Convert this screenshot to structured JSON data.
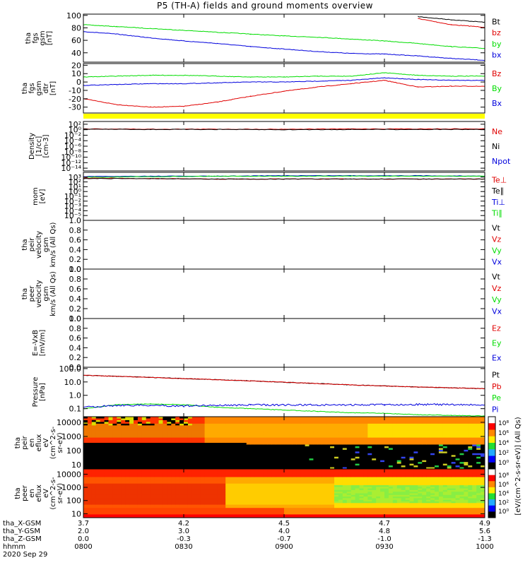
{
  "title": "P5 (TH-A) fields and ground moments overview",
  "colors": {
    "black": "#000000",
    "red": "#e00000",
    "green": "#00dd00",
    "blue": "#0000dd",
    "yellow": "#ffff00"
  },
  "chart_data": [
    {
      "type": "line",
      "id": "fgs_gsm",
      "ylabel": [
        "tha",
        "fgs",
        "gsm",
        "[nT]"
      ],
      "ylim": [
        25,
        102
      ],
      "ticks": [
        40,
        60,
        80,
        100
      ],
      "x": [
        0,
        10,
        20,
        30,
        40,
        50,
        60,
        70,
        80,
        90,
        100,
        110,
        120
      ],
      "series": [
        {
          "name": "Bt",
          "color": "#000000",
          "values": [
            null,
            null,
            null,
            null,
            null,
            null,
            null,
            null,
            null,
            null,
            98,
            93,
            89
          ]
        },
        {
          "name": "bz",
          "color": "#e00000",
          "values": [
            null,
            null,
            null,
            null,
            null,
            null,
            null,
            null,
            null,
            null,
            95,
            85,
            81
          ]
        },
        {
          "name": "by",
          "color": "#00dd00",
          "values": [
            85,
            82,
            79,
            76,
            73,
            70,
            67,
            65,
            62,
            59,
            55,
            50,
            47
          ]
        },
        {
          "name": "bx",
          "color": "#0000dd",
          "values": [
            74,
            70,
            64,
            59,
            55,
            50,
            46,
            42,
            39,
            38,
            35,
            31,
            28
          ]
        }
      ]
    },
    {
      "type": "line",
      "id": "fgs_gsm_detrend",
      "ylabel": [
        "tha",
        "fgs",
        "gsm",
        "dtr",
        "[nT]"
      ],
      "ylim": [
        -37,
        22
      ],
      "ticks": [
        -30,
        -20,
        -10,
        0,
        10,
        20
      ],
      "x": [
        0,
        10,
        20,
        30,
        40,
        50,
        60,
        70,
        80,
        90,
        100,
        110,
        120
      ],
      "series": [
        {
          "name": "Bz",
          "color": "#e00000",
          "values": [
            -20,
            -27,
            -30,
            -29,
            -24,
            -17,
            -11,
            -6,
            -2,
            2,
            -6,
            -5,
            -5
          ]
        },
        {
          "name": "By",
          "color": "#00dd00",
          "values": [
            6,
            7,
            8,
            8,
            7,
            6,
            6,
            7,
            7,
            11,
            8,
            7,
            7
          ]
        },
        {
          "name": "Bx",
          "color": "#0000dd",
          "values": [
            -4,
            -3,
            -2,
            -2,
            -1,
            0,
            0,
            1,
            2,
            5,
            3,
            2,
            2
          ]
        }
      ]
    },
    {
      "type": "line",
      "id": "density",
      "ylabel": [
        "Density",
        "[1/cc]",
        "[cm-3]"
      ],
      "scale": "log",
      "ylim": [
        -15,
        3
      ],
      "ticks": [
        -14,
        -12,
        -10,
        -8,
        -6,
        -4,
        -2,
        0,
        2
      ],
      "tick_labels": [
        "10⁻¹⁴",
        "10⁻¹²",
        "10⁻¹⁰",
        "10⁻⁸",
        "10⁻⁶",
        "10⁻⁴",
        "10⁻²",
        "10⁰",
        "10²"
      ],
      "x": [
        0,
        20,
        40,
        60,
        80,
        100,
        120
      ],
      "series": [
        {
          "name": "Ne",
          "color": "#e00000",
          "values": [
            0.3,
            0.2,
            0.2,
            0.2,
            0.3,
            0.3,
            0.3
          ]
        },
        {
          "name": "Ni",
          "color": "#000000",
          "values": [
            0.2,
            0.1,
            0.1,
            0.0,
            0.1,
            0.1,
            0.1
          ]
        },
        {
          "name": "Npot",
          "color": "#0000dd",
          "values": [
            null,
            null,
            null,
            null,
            null,
            null,
            null
          ]
        }
      ]
    },
    {
      "type": "line",
      "id": "temperature",
      "ylabel": [
        "mom",
        "[eV]"
      ],
      "scale": "log",
      "ylim": [
        -6,
        4
      ],
      "ticks": [
        -5,
        -4,
        -3,
        -2,
        -1,
        0,
        1,
        2,
        3
      ],
      "tick_labels": [
        "10⁻⁵",
        "10⁻⁴",
        "10⁻³",
        "10⁻²",
        "10⁻¹",
        "10⁰",
        "10¹",
        "10²",
        "10³"
      ],
      "x": [
        0,
        20,
        40,
        60,
        80,
        100,
        120
      ],
      "series": [
        {
          "name": "Te⊥",
          "color": "#e00000",
          "values": [
            2.8,
            2.7,
            2.6,
            2.6,
            2.6,
            2.6,
            2.6
          ]
        },
        {
          "name": "Te∥",
          "color": "#000000",
          "values": [
            2.7,
            2.7,
            2.6,
            2.6,
            2.6,
            2.6,
            2.6
          ]
        },
        {
          "name": "Ti⊥",
          "color": "#0000dd",
          "values": [
            3.1,
            3.2,
            3.2,
            3.3,
            3.3,
            3.3,
            3.2
          ]
        },
        {
          "name": "Ti∥",
          "color": "#00dd00",
          "values": [
            3.0,
            3.1,
            3.2,
            3.2,
            3.2,
            3.2,
            3.2
          ]
        }
      ]
    },
    {
      "type": "line",
      "id": "peir_velocity",
      "ylabel": [
        "tha",
        "peir",
        "velocity",
        "gsm",
        "km/s (All Qs)"
      ],
      "ylim": [
        0,
        1
      ],
      "ticks": [
        0,
        0.2,
        0.4,
        0.6,
        0.8,
        1.0
      ],
      "tick_labels": [
        "0.0",
        "0.2",
        "0.4",
        "0.6",
        "0.8",
        "1.0"
      ],
      "series": [
        {
          "name": "Vt",
          "color": "#000000"
        },
        {
          "name": "Vz",
          "color": "#e00000"
        },
        {
          "name": "Vy",
          "color": "#00dd00"
        },
        {
          "name": "Vx",
          "color": "#0000dd"
        }
      ]
    },
    {
      "type": "line",
      "id": "peer_velocity",
      "ylabel": [
        "tha",
        "peer",
        "velocity",
        "gsm",
        "km/s (All Qs)"
      ],
      "ylim": [
        0,
        1
      ],
      "ticks": [
        0,
        0.2,
        0.4,
        0.6,
        0.8,
        1.0
      ],
      "tick_labels": [
        "0.0",
        "0.2",
        "0.4",
        "0.6",
        "0.8",
        "1.0"
      ],
      "series": [
        {
          "name": "Vt",
          "color": "#000000"
        },
        {
          "name": "Vz",
          "color": "#e00000"
        },
        {
          "name": "Vy",
          "color": "#00dd00"
        },
        {
          "name": "Vx",
          "color": "#0000dd"
        }
      ]
    },
    {
      "type": "line",
      "id": "efield",
      "ylabel": [
        "E=-VxB",
        "[mV/m]"
      ],
      "ylim": [
        0,
        1
      ],
      "ticks": [
        0,
        0.2,
        0.4,
        0.6,
        0.8,
        1.0
      ],
      "tick_labels": [
        "0.0",
        "0.2",
        "0.4",
        "0.6",
        "0.8",
        "1.0"
      ],
      "series": [
        {
          "name": "Ez",
          "color": "#e00000"
        },
        {
          "name": "Ey",
          "color": "#00dd00"
        },
        {
          "name": "Ex",
          "color": "#0000dd"
        }
      ]
    },
    {
      "type": "line",
      "id": "pressure",
      "ylabel": [
        "Pressure",
        "[nPa]"
      ],
      "scale": "log",
      "ylim": [
        -1.6,
        2.1
      ],
      "ticks": [
        -1,
        0,
        1,
        2
      ],
      "tick_labels": [
        "0.1",
        "1.0",
        "10.0",
        "100.0"
      ],
      "x": [
        0,
        10,
        20,
        30,
        40,
        50,
        60,
        70,
        80,
        90,
        100,
        110,
        120
      ],
      "series": [
        {
          "name": "Pt",
          "color": "#000000",
          "values": [
            1.5,
            1.42,
            1.34,
            1.25,
            1.17,
            1.08,
            0.98,
            0.88,
            0.78,
            0.7,
            0.62,
            0.56,
            0.5
          ]
        },
        {
          "name": "Pb",
          "color": "#e00000",
          "values": [
            1.5,
            1.42,
            1.34,
            1.25,
            1.17,
            1.08,
            0.98,
            0.88,
            0.78,
            0.7,
            0.62,
            0.56,
            0.5
          ]
        },
        {
          "name": "Pe",
          "color": "#00dd00",
          "values": [
            -1.0,
            -0.7,
            -0.65,
            -0.7,
            -0.9,
            -1.0,
            -1.1,
            -1.2,
            -1.3,
            -1.35,
            -1.45,
            -1.5,
            -1.55
          ]
        },
        {
          "name": "Pi",
          "color": "#0000dd",
          "values": [
            -0.9,
            -0.75,
            -0.75,
            -0.8,
            -0.75,
            -0.72,
            -0.72,
            -0.72,
            -0.72,
            -0.7,
            -0.68,
            -0.7,
            -0.72
          ]
        }
      ]
    },
    {
      "type": "heatmap",
      "id": "peir_en",
      "ylabel": [
        "tha",
        "peir",
        "en",
        "eflux",
        "eV",
        "(cm^2-s-",
        "sr-eV)"
      ],
      "ylim": [
        5,
        25000
      ],
      "ticks": [
        10,
        100,
        1000,
        10000
      ],
      "tick_labels": [
        "10",
        "100",
        "1000",
        "10000"
      ]
    },
    {
      "type": "heatmap",
      "id": "peer_en",
      "ylabel": [
        "tha",
        "peer",
        "en",
        "eflux",
        "eV",
        "(cm^2-s-",
        "sr-eV)"
      ],
      "ylim": [
        5,
        25000
      ],
      "ticks": [
        10,
        100,
        1000,
        10000
      ],
      "tick_labels": [
        "10",
        "100",
        "1000",
        "10000"
      ]
    }
  ],
  "colorbar": {
    "label": "[eV/(cm^2-s-sr-eV)] (All Qs)",
    "top_ticks": [
      "10⁸",
      "10⁶",
      "10⁴",
      "10²",
      "10⁰"
    ],
    "bottom_ticks": [
      "10⁸",
      "10⁶",
      "10⁴",
      "10²",
      "10⁰"
    ]
  },
  "xaxis": {
    "rows": [
      {
        "label": "tha_X-GSM",
        "values": [
          "3.7",
          "4.2",
          "4.5",
          "4.7",
          "4.9"
        ]
      },
      {
        "label": "tha_Y-GSM",
        "values": [
          "2.0",
          "3.0",
          "4.0",
          "4.8",
          "5.6"
        ]
      },
      {
        "label": "tha_Z-GSM",
        "values": [
          "0.0",
          "-0.3",
          "-0.7",
          "-1.0",
          "-1.3"
        ]
      },
      {
        "label": "hhmm",
        "values": [
          "0800",
          "0830",
          "0900",
          "0930",
          "1000"
        ]
      }
    ],
    "date": "2020 Sep 29",
    "minutes": [
      0,
      30,
      60,
      90,
      120
    ]
  }
}
